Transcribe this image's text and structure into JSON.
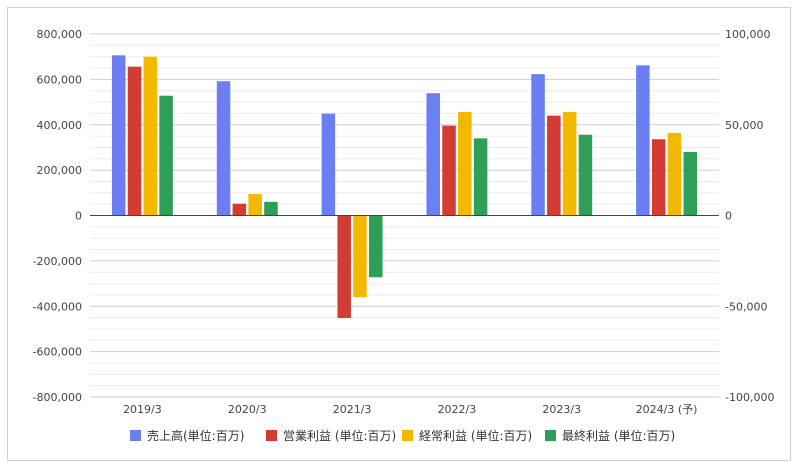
{
  "chart_data": {
    "type": "bar",
    "categories": [
      "2019/3",
      "2020/3",
      "2021/3",
      "2022/3",
      "2023/3",
      "2024/3 (予)"
    ],
    "series": [
      {
        "name": "売上高(単位:百万)",
        "axis": "left",
        "color": "#6b7ff2",
        "values": [
          706000,
          592000,
          449000,
          539000,
          623000,
          662000
        ]
      },
      {
        "name": "営業利益 (単位:百万)",
        "axis": "right",
        "color": "#d23c32",
        "values": [
          82000,
          6500,
          -56500,
          49500,
          55000,
          42000
        ]
      },
      {
        "name": "経常利益 (単位:百万)",
        "axis": "right",
        "color": "#f2b900",
        "values": [
          87500,
          11800,
          -45000,
          57000,
          57000,
          45500
        ]
      },
      {
        "name": "最終利益 (単位:百万)",
        "axis": "right",
        "color": "#2e9e58",
        "values": [
          66000,
          7500,
          -34000,
          42500,
          44500,
          35000
        ]
      }
    ],
    "left_axis": {
      "min": -800000,
      "max": 800000,
      "ticks": [
        800000,
        600000,
        400000,
        200000,
        0,
        -200000,
        -400000,
        -600000,
        -800000
      ],
      "tick_labels": [
        "800,000",
        "600,000",
        "400,000",
        "200,000",
        "0",
        "-200,000",
        "-400,000",
        "-600,000",
        "-800,000"
      ]
    },
    "right_axis": {
      "min": -100000,
      "max": 100000,
      "ticks": [
        100000,
        50000,
        0,
        -50000,
        -100000
      ],
      "tick_labels": [
        "100,000",
        "50,000",
        "0",
        "-50,000",
        "-100,000"
      ]
    },
    "legend_position": "bottom",
    "grid": true
  }
}
